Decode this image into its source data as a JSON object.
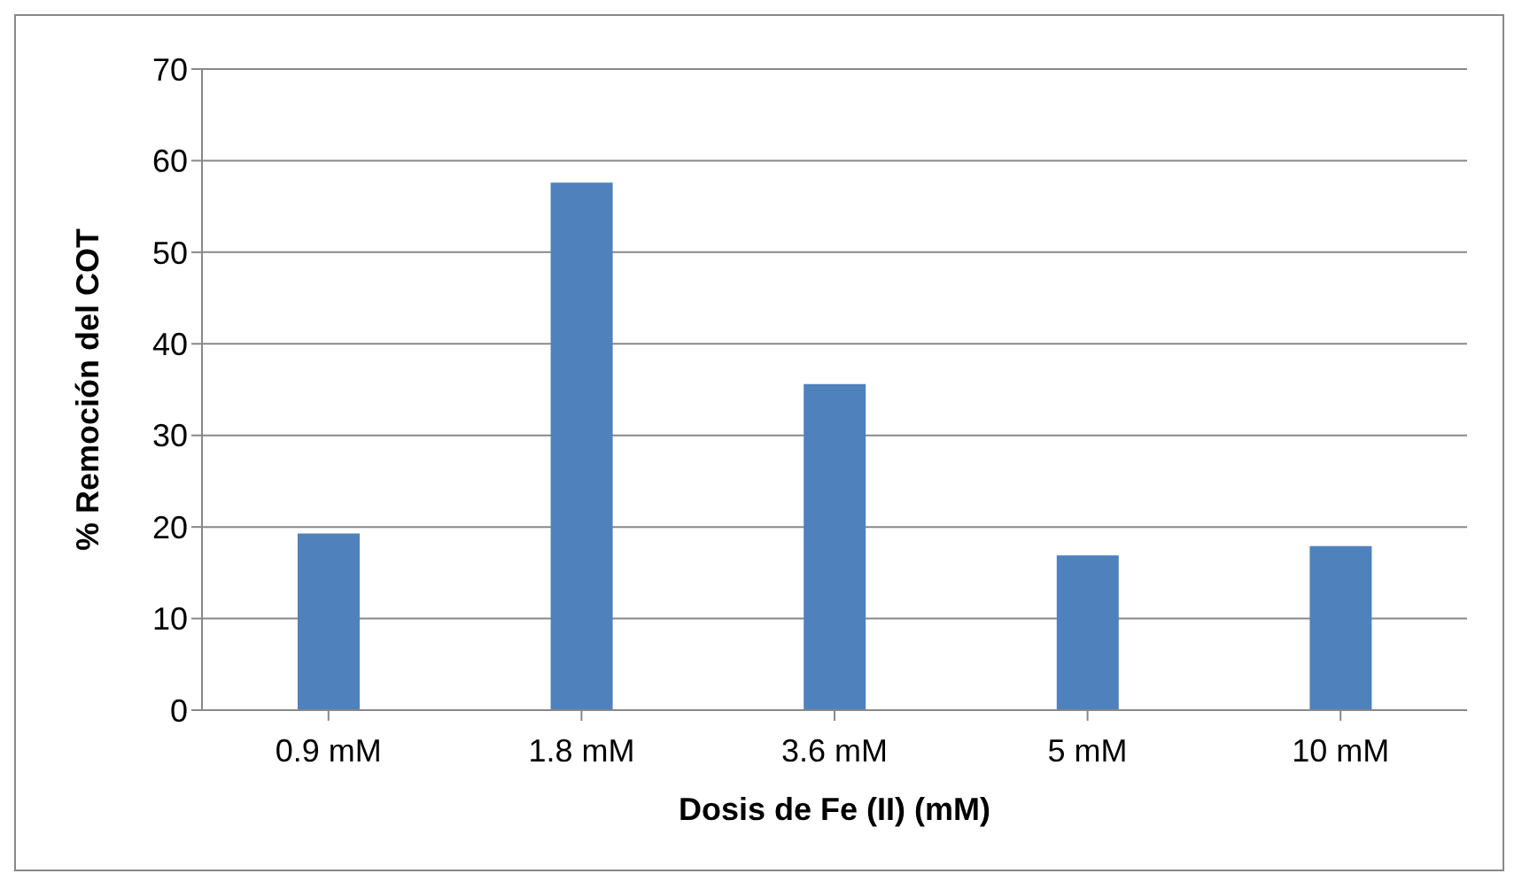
{
  "chart_data": {
    "type": "bar",
    "xlabel": "Dosis de Fe (II) (mM)",
    "ylabel": "% Remoción del COT",
    "categories": [
      "0.9 mM",
      "1.8 mM",
      "3.6 mM",
      "5 mM",
      "10 mM"
    ],
    "values": [
      19.3,
      57.6,
      35.6,
      16.9,
      17.9
    ],
    "color": "#4f81bd",
    "ylim": [
      0,
      70
    ],
    "yticks": [
      0,
      10,
      20,
      30,
      40,
      50,
      60,
      70
    ],
    "grid": "y"
  }
}
